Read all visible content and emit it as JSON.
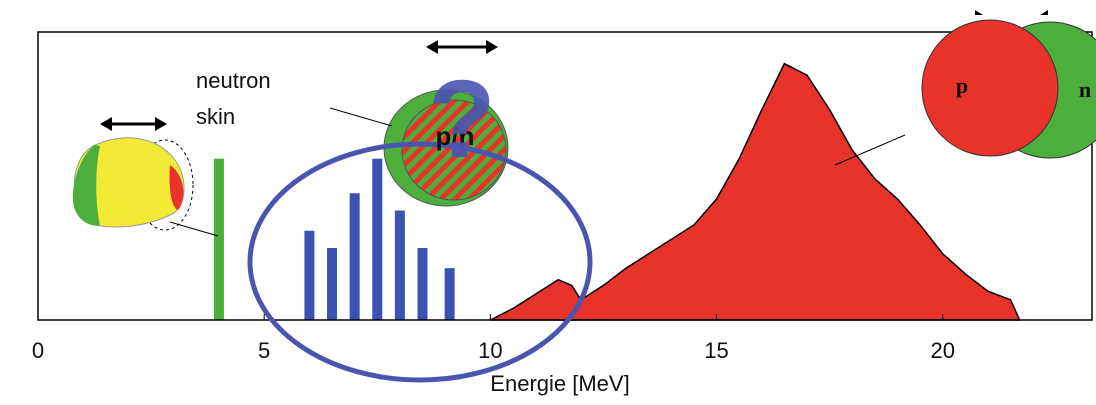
{
  "chart_data": {
    "type": "combo",
    "xlabel": "Energie [MeV]",
    "xlim": [
      0,
      23.3
    ],
    "ylim": [
      0,
      100
    ],
    "xticks": [
      0,
      5,
      10,
      15,
      20
    ],
    "annotations": [
      "neutron",
      "skin",
      "p/n",
      "?",
      "p",
      "n"
    ],
    "series": [
      {
        "type": "bar",
        "color": "#4caf3c",
        "x": [
          4.0
        ],
        "values": [
          56
        ]
      },
      {
        "type": "bar",
        "color": "#3a52b0",
        "x": [
          6.0,
          6.5,
          7.0,
          7.5,
          8.0,
          8.5,
          9.1
        ],
        "values": [
          31,
          25,
          44,
          56,
          38,
          25,
          18
        ]
      },
      {
        "type": "area",
        "color": "#e8332a",
        "x": [
          10,
          10.5,
          11,
          11.5,
          11.8,
          12,
          12.5,
          13,
          13.5,
          14,
          14.5,
          15,
          15.5,
          16,
          16.5,
          17,
          17.5,
          18,
          18.5,
          19,
          19.5,
          20,
          20.5,
          21,
          21.5,
          21.7
        ],
        "values": [
          0,
          4,
          9,
          14,
          12,
          7,
          12,
          18,
          23,
          28,
          33,
          42,
          56,
          73,
          89,
          85,
          73,
          59,
          49,
          42,
          33,
          23,
          16,
          10,
          7,
          0
        ]
      }
    ]
  }
}
